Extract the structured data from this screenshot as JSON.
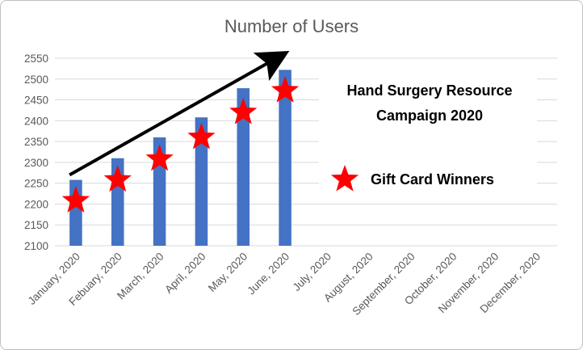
{
  "chart_data": {
    "type": "bar",
    "title": "Number of Users",
    "categories": [
      "January, 2020",
      "Febuary, 2020",
      "March, 2020",
      "April, 2020",
      "May, 2020",
      "June, 2020",
      "July, 2020",
      "August, 2020",
      "September, 2020",
      "October, 2020",
      "November, 2020",
      "December, 2020"
    ],
    "values": [
      2258,
      2310,
      2360,
      2408,
      2478,
      2522,
      null,
      null,
      null,
      null,
      null,
      null
    ],
    "ylim": [
      2100,
      2550
    ],
    "yticks": [
      2100,
      2150,
      2200,
      2250,
      2300,
      2350,
      2400,
      2450,
      2500,
      2550
    ],
    "grid": true,
    "bar_color": "#4472c4",
    "marker_color": "#ff0000",
    "markers": [
      2208,
      2258,
      2308,
      2360,
      2420,
      2472
    ],
    "trend_arrow": {
      "from": {
        "category": "January, 2020",
        "y": 2270
      },
      "to": {
        "category": "June, 2020",
        "y": 2556
      },
      "color": "#000000"
    },
    "annotations": {
      "campaign_line1": "Hand Surgery Resource",
      "campaign_line2": "Campaign 2020",
      "legend_marker_label": "Gift Card Winners"
    }
  }
}
